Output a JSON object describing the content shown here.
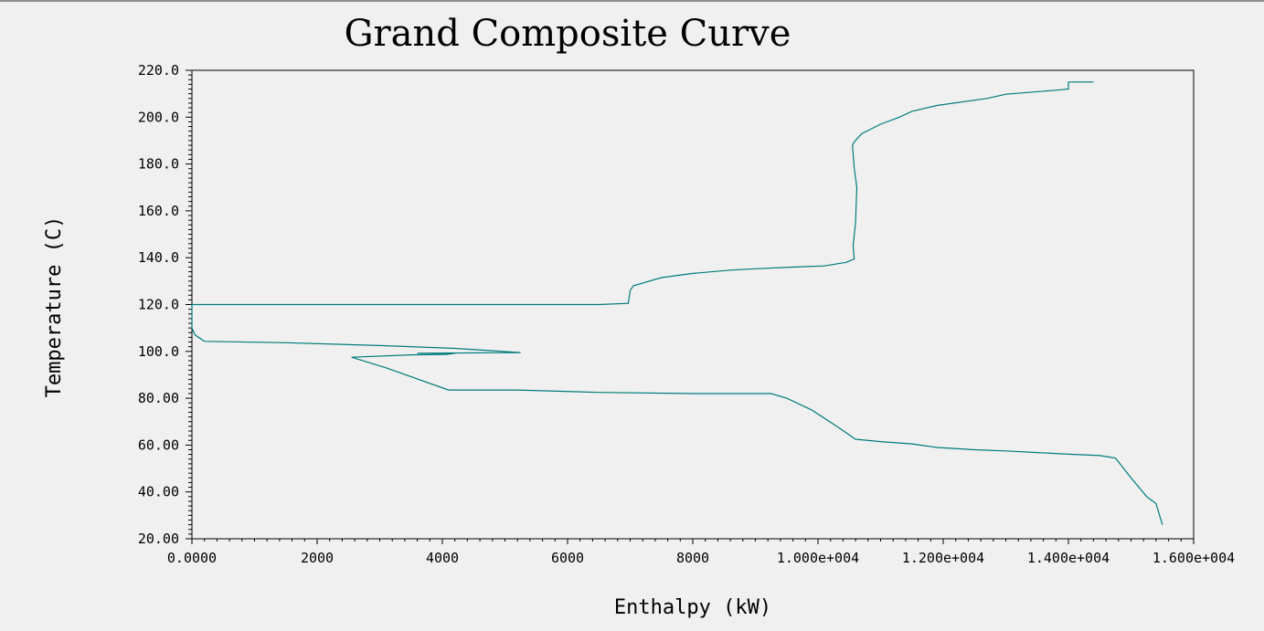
{
  "chart_data": {
    "type": "line",
    "title": "Grand Composite Curve",
    "xlabel": "Enthalpy (kW)",
    "ylabel": "Temperature (C)",
    "xlim": [
      0,
      16000
    ],
    "ylim": [
      20,
      220
    ],
    "xticks": [
      0,
      2000,
      4000,
      6000,
      8000,
      10000,
      12000,
      14000,
      16000
    ],
    "xtick_labels": [
      "0.0000",
      "2000",
      "4000",
      "6000",
      "8000",
      "1.000e+004",
      "1.200e+004",
      "1.400e+004",
      "1.600e+004"
    ],
    "yticks": [
      20,
      40,
      60,
      80,
      100,
      120,
      140,
      160,
      180,
      200,
      220
    ],
    "ytick_labels": [
      "20.00",
      "40.00",
      "60.00",
      "80.00",
      "100.0",
      "120.0",
      "140.0",
      "160.0",
      "180.0",
      "200.0",
      "220.0"
    ],
    "grid": false,
    "series": [
      {
        "color": "#007b7b",
        "points": [
          [
            14400,
            215.0
          ],
          [
            14000,
            215.0
          ],
          [
            14000,
            212.0
          ],
          [
            13800,
            211.5
          ],
          [
            13000,
            209.8
          ],
          [
            12700,
            208.0
          ],
          [
            11900,
            205.0
          ],
          [
            11500,
            202.5
          ],
          [
            11300,
            200.0
          ],
          [
            11000,
            197.0
          ],
          [
            10700,
            193.0
          ],
          [
            10580,
            189.5
          ],
          [
            10550,
            188.0
          ],
          [
            10580,
            178.0
          ],
          [
            10620,
            170.0
          ],
          [
            10600,
            155.0
          ],
          [
            10560,
            145.0
          ],
          [
            10580,
            139.5
          ],
          [
            10450,
            138.0
          ],
          [
            10100,
            136.5
          ],
          [
            9600,
            136.0
          ],
          [
            9000,
            135.3
          ],
          [
            8600,
            134.7
          ],
          [
            8000,
            133.3
          ],
          [
            7500,
            131.5
          ],
          [
            7050,
            128.0
          ],
          [
            7000,
            126.0
          ],
          [
            6970,
            120.5
          ],
          [
            6500,
            120.0
          ],
          [
            0,
            120.0
          ],
          [
            0,
            118.0
          ],
          [
            0,
            114.0
          ],
          [
            0,
            110.0
          ],
          [
            50,
            107.0
          ],
          [
            200,
            104.3
          ],
          [
            1500,
            103.7
          ],
          [
            3000,
            102.5
          ],
          [
            4200,
            101.3
          ],
          [
            5250,
            99.5
          ],
          [
            4750,
            99.4
          ],
          [
            3600,
            99.2
          ],
          [
            4200,
            99.2
          ],
          [
            4050,
            98.7
          ],
          [
            3500,
            98.5
          ],
          [
            2550,
            97.5
          ],
          [
            3100,
            93.0
          ],
          [
            4100,
            83.5
          ],
          [
            5200,
            83.5
          ],
          [
            6500,
            82.5
          ],
          [
            8000,
            82.0
          ],
          [
            9250,
            82.0
          ],
          [
            9500,
            80.0
          ],
          [
            9900,
            75.0
          ],
          [
            10300,
            68.0
          ],
          [
            10600,
            62.5
          ],
          [
            11000,
            61.5
          ],
          [
            11500,
            60.5
          ],
          [
            11900,
            59.0
          ],
          [
            12500,
            58.0
          ],
          [
            13000,
            57.5
          ],
          [
            13500,
            56.8
          ],
          [
            14000,
            56.1
          ],
          [
            14500,
            55.5
          ],
          [
            14750,
            54.5
          ],
          [
            15000,
            46.0
          ],
          [
            15250,
            38.0
          ],
          [
            15400,
            35.0
          ],
          [
            15500,
            26.0
          ]
        ]
      }
    ]
  }
}
